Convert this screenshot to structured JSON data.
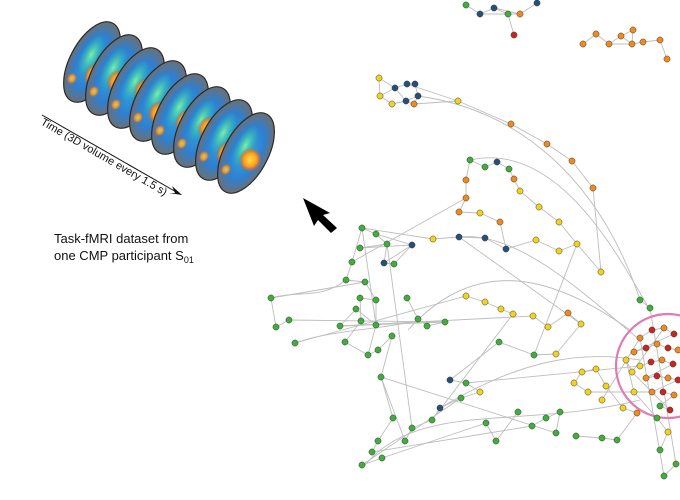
{
  "axis": {
    "time_label": "Time (3D volume every 1.5 s)"
  },
  "caption": {
    "line1": "Task-fMRI dataset from",
    "line2_prefix": "one CMP participant S",
    "line2_subscript": "01"
  },
  "colors": {
    "node_green": "#3fae3a",
    "node_yellow": "#f2d21b",
    "node_orange": "#f08a1c",
    "node_red": "#c9261c",
    "node_blue": "#25507a",
    "edge": "#bdbdbd",
    "highlight_circle": "#e07ab0",
    "arrow": "#000000"
  }
}
